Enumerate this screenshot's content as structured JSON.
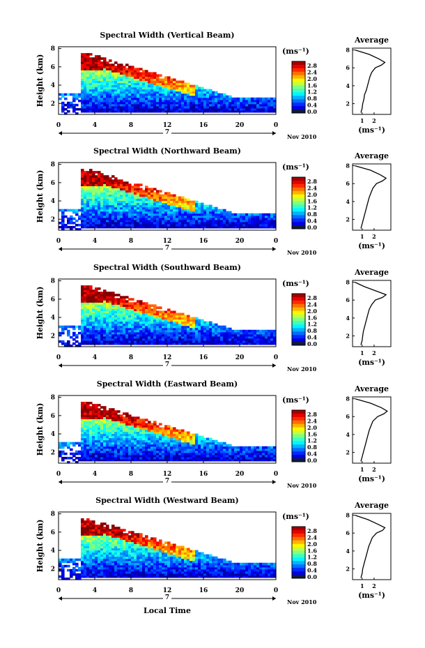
{
  "figure": {
    "xlabel": "Local Time",
    "date_label": "Nov 2010",
    "day_label": "7",
    "colorbar_unit": "(ms⁻¹)",
    "avg_title": "Average",
    "avg_unit": "(ms⁻¹)"
  },
  "chart_data": [
    {
      "type": "heatmap",
      "title": "Spectral Width (Vertical Beam)",
      "ylabel": "Height (km)",
      "x_ticks": [
        "0",
        "4",
        "8",
        "12",
        "16",
        "20",
        "0"
      ],
      "y_ticks": [
        "2",
        "4",
        "6",
        "8"
      ],
      "xlim": [
        0,
        24
      ],
      "ylim": [
        0.8,
        8.2
      ],
      "colorbar_ticks": [
        "2.8",
        "2.4",
        "2.0",
        "1.6",
        "1.2",
        "0.8",
        "0.4",
        "0.0"
      ],
      "color_range": [
        0.0,
        3.0
      ],
      "profile": {
        "title": "Average",
        "x_ticks": [
          "1",
          "2"
        ],
        "y_ticks": [
          "2",
          "4",
          "6",
          "8"
        ],
        "height": [
          1.0,
          1.5,
          2.0,
          2.5,
          3.0,
          3.5,
          4.0,
          4.5,
          5.0,
          5.5,
          6.0,
          6.3,
          6.6,
          7.0,
          7.5,
          8.0
        ],
        "width": [
          0.9,
          1.0,
          1.05,
          1.15,
          1.2,
          1.35,
          1.45,
          1.55,
          1.65,
          1.8,
          2.1,
          2.6,
          2.9,
          2.4,
          1.6,
          0.4
        ]
      }
    },
    {
      "type": "heatmap",
      "title": "Spectral Width (Northward Beam)",
      "ylabel": "Height (km)",
      "x_ticks": [
        "0",
        "4",
        "8",
        "12",
        "16",
        "20",
        "0"
      ],
      "y_ticks": [
        "2",
        "4",
        "6",
        "8"
      ],
      "xlim": [
        0,
        24
      ],
      "ylim": [
        0.8,
        8.2
      ],
      "colorbar_ticks": [
        "2.8",
        "2.4",
        "2.0",
        "1.6",
        "1.2",
        "0.8",
        "0.4",
        "0.0"
      ],
      "color_range": [
        0.0,
        3.0
      ],
      "profile": {
        "title": "Average",
        "x_ticks": [
          "1",
          "2"
        ],
        "y_ticks": [
          "2",
          "4",
          "6",
          "8"
        ],
        "height": [
          1.0,
          1.5,
          2.0,
          2.5,
          3.0,
          3.5,
          4.0,
          4.5,
          5.0,
          5.5,
          6.0,
          6.3,
          6.6,
          7.0,
          7.5,
          8.0
        ],
        "width": [
          0.9,
          1.0,
          1.1,
          1.2,
          1.3,
          1.4,
          1.5,
          1.6,
          1.75,
          1.9,
          2.2,
          2.7,
          3.0,
          2.5,
          1.7,
          0.4
        ]
      }
    },
    {
      "type": "heatmap",
      "title": "Spectral Width (Southward Beam)",
      "ylabel": "Height (km)",
      "x_ticks": [
        "0",
        "4",
        "8",
        "12",
        "16",
        "20",
        "0"
      ],
      "y_ticks": [
        "2",
        "4",
        "6",
        "8"
      ],
      "xlim": [
        0,
        24
      ],
      "ylim": [
        0.8,
        8.2
      ],
      "colorbar_ticks": [
        "2.8",
        "2.4",
        "2.0",
        "1.6",
        "1.2",
        "0.8",
        "0.4",
        "0.0"
      ],
      "color_range": [
        0.0,
        3.0
      ],
      "profile": {
        "title": "Average",
        "x_ticks": [
          "1",
          "2"
        ],
        "y_ticks": [
          "2",
          "4",
          "6",
          "8"
        ],
        "height": [
          1.0,
          1.5,
          2.0,
          2.5,
          3.0,
          3.5,
          4.0,
          4.5,
          5.0,
          5.5,
          6.0,
          6.3,
          6.6,
          7.0,
          7.5,
          8.0
        ],
        "width": [
          0.9,
          1.0,
          1.05,
          1.1,
          1.2,
          1.3,
          1.4,
          1.5,
          1.6,
          1.8,
          2.1,
          2.7,
          3.0,
          2.2,
          1.2,
          0.4
        ]
      }
    },
    {
      "type": "heatmap",
      "title": "Spectral Width (Eastward Beam)",
      "ylabel": "Height (km)",
      "x_ticks": [
        "0",
        "4",
        "8",
        "12",
        "16",
        "20",
        "0"
      ],
      "y_ticks": [
        "2",
        "4",
        "6",
        "8"
      ],
      "xlim": [
        0,
        24
      ],
      "ylim": [
        0.8,
        8.2
      ],
      "colorbar_ticks": [
        "2.8",
        "2.4",
        "2.0",
        "1.6",
        "1.2",
        "0.8",
        "0.4",
        "0.0"
      ],
      "color_range": [
        0.0,
        3.0
      ],
      "profile": {
        "title": "Average",
        "x_ticks": [
          "1",
          "2"
        ],
        "y_ticks": [
          "2",
          "4",
          "6",
          "8"
        ],
        "height": [
          1.0,
          1.5,
          2.0,
          2.5,
          3.0,
          3.5,
          4.0,
          4.5,
          5.0,
          5.5,
          6.0,
          6.3,
          6.6,
          7.0,
          7.5,
          8.0
        ],
        "width": [
          0.9,
          1.0,
          1.1,
          1.2,
          1.3,
          1.4,
          1.5,
          1.6,
          1.75,
          1.9,
          2.3,
          2.8,
          3.1,
          2.6,
          1.7,
          0.4
        ]
      }
    },
    {
      "type": "heatmap",
      "title": "Spectral Width (Westward Beam)",
      "ylabel": "Height (km)",
      "x_ticks": [
        "0",
        "4",
        "8",
        "12",
        "16",
        "20",
        "0"
      ],
      "y_ticks": [
        "2",
        "4",
        "6",
        "8"
      ],
      "xlim": [
        0,
        24
      ],
      "ylim": [
        0.8,
        8.2
      ],
      "colorbar_ticks": [
        "2.8",
        "2.4",
        "2.0",
        "1.6",
        "1.2",
        "0.8",
        "0.4",
        "0.0"
      ],
      "color_range": [
        0.0,
        3.0
      ],
      "profile": {
        "title": "Average",
        "x_ticks": [
          "1",
          "2"
        ],
        "y_ticks": [
          "2",
          "4",
          "6",
          "8"
        ],
        "height": [
          1.0,
          1.5,
          2.0,
          2.5,
          3.0,
          3.5,
          4.0,
          4.5,
          5.0,
          5.5,
          6.0,
          6.3,
          6.6,
          7.0,
          7.5,
          8.0
        ],
        "width": [
          0.9,
          1.0,
          1.05,
          1.15,
          1.25,
          1.35,
          1.45,
          1.55,
          1.7,
          1.85,
          2.2,
          2.7,
          2.9,
          2.3,
          1.5,
          0.4
        ]
      }
    }
  ]
}
